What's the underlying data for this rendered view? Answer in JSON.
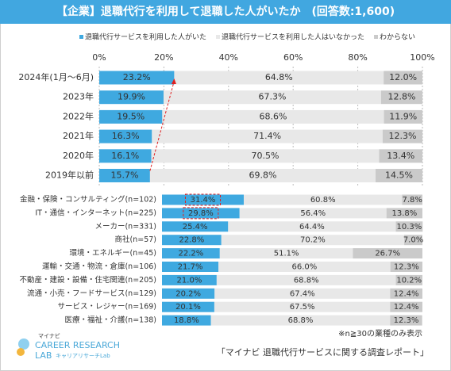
{
  "chart_data": {
    "type": "bar",
    "orientation": "horizontal",
    "stacked": true,
    "title": "【企業】退職代行を利用して退職した人がいたか　(回答数:1,600)",
    "categories": [
      "2024年(1月～6月)",
      "2023年",
      "2022年",
      "2021年",
      "2020年",
      "2019年以前",
      "金融・保険・コンサルティング(n=102)",
      "IT・通信・インターネット(n=225)",
      "メーカー(n=331)",
      "商社(n=57)",
      "環境・エネルギー(n=45)",
      "運輸・交通・物流・倉庫(n=106)",
      "不動産・建設・設備・住宅関連(n=205)",
      "流通・小売・フードサービス(n=129)",
      "サービス・レジャー(n=169)",
      "医療・福祉・介護(n=138)"
    ],
    "series": [
      {
        "name": "退職代行サービスを利用した人がいた",
        "color": "#3fa9e0",
        "values": [
          23.2,
          19.9,
          19.5,
          16.3,
          16.1,
          15.7,
          31.4,
          29.8,
          25.4,
          22.8,
          22.2,
          21.7,
          21.0,
          20.2,
          20.1,
          18.8
        ],
        "value_labels": [
          "23.2%",
          "19.9%",
          "19.5%",
          "16.3%",
          "16.1%",
          "15.7%",
          "31.4%",
          "29.8%",
          "25.4%",
          "22.8%",
          "22.2%",
          "21.7%",
          "21.0%",
          "20.2%",
          "20.1%",
          "18.8%"
        ]
      },
      {
        "name": "退職代行サービスを利用した人はいなかった",
        "color": "#e8e8e8",
        "values": [
          64.8,
          67.3,
          68.6,
          71.4,
          70.5,
          69.8,
          60.8,
          56.4,
          64.4,
          70.2,
          51.1,
          66.0,
          68.8,
          67.4,
          67.5,
          68.8
        ],
        "value_labels": [
          "64.8%",
          "67.3%",
          "68.6%",
          "71.4%",
          "70.5%",
          "69.8%",
          "60.8%",
          "56.4%",
          "64.4%",
          "70.2%",
          "51.1%",
          "66.0%",
          "68.8%",
          "67.4%",
          "67.5%",
          "68.8%"
        ]
      },
      {
        "name": "わからない",
        "color": "#cacaca",
        "values": [
          12.0,
          12.8,
          11.9,
          12.3,
          13.4,
          14.5,
          7.8,
          13.8,
          10.3,
          7.0,
          26.7,
          12.3,
          10.2,
          12.4,
          12.4,
          12.3
        ],
        "value_labels": [
          "12.0%",
          "12.8%",
          "11.9%",
          "12.3%",
          "13.4%",
          "14.5%",
          "7.8%",
          "13.8%",
          "10.3%",
          "7.0%",
          "26.7%",
          "12.3%",
          "10.2%",
          "12.4%",
          "12.4%",
          "12.3%"
        ]
      }
    ],
    "xlim": [
      0,
      100
    ],
    "xticks": [
      {
        "value": 0,
        "label": "0%"
      },
      {
        "value": 20,
        "label": "20%"
      },
      {
        "value": 40,
        "label": "40%"
      },
      {
        "value": 60,
        "label": "60%"
      },
      {
        "value": 80,
        "label": "80%"
      },
      {
        "value": 100,
        "label": "100%"
      }
    ],
    "grid": true,
    "note": "※n≧30の業種のみ表示",
    "source": "「マイナビ 退職代行サービスに関する調査レポート」",
    "logo": [
      "マイナビ",
      "CAREER RESEARCH",
      "LAB",
      "キャリアリサーチLab"
    ]
  }
}
